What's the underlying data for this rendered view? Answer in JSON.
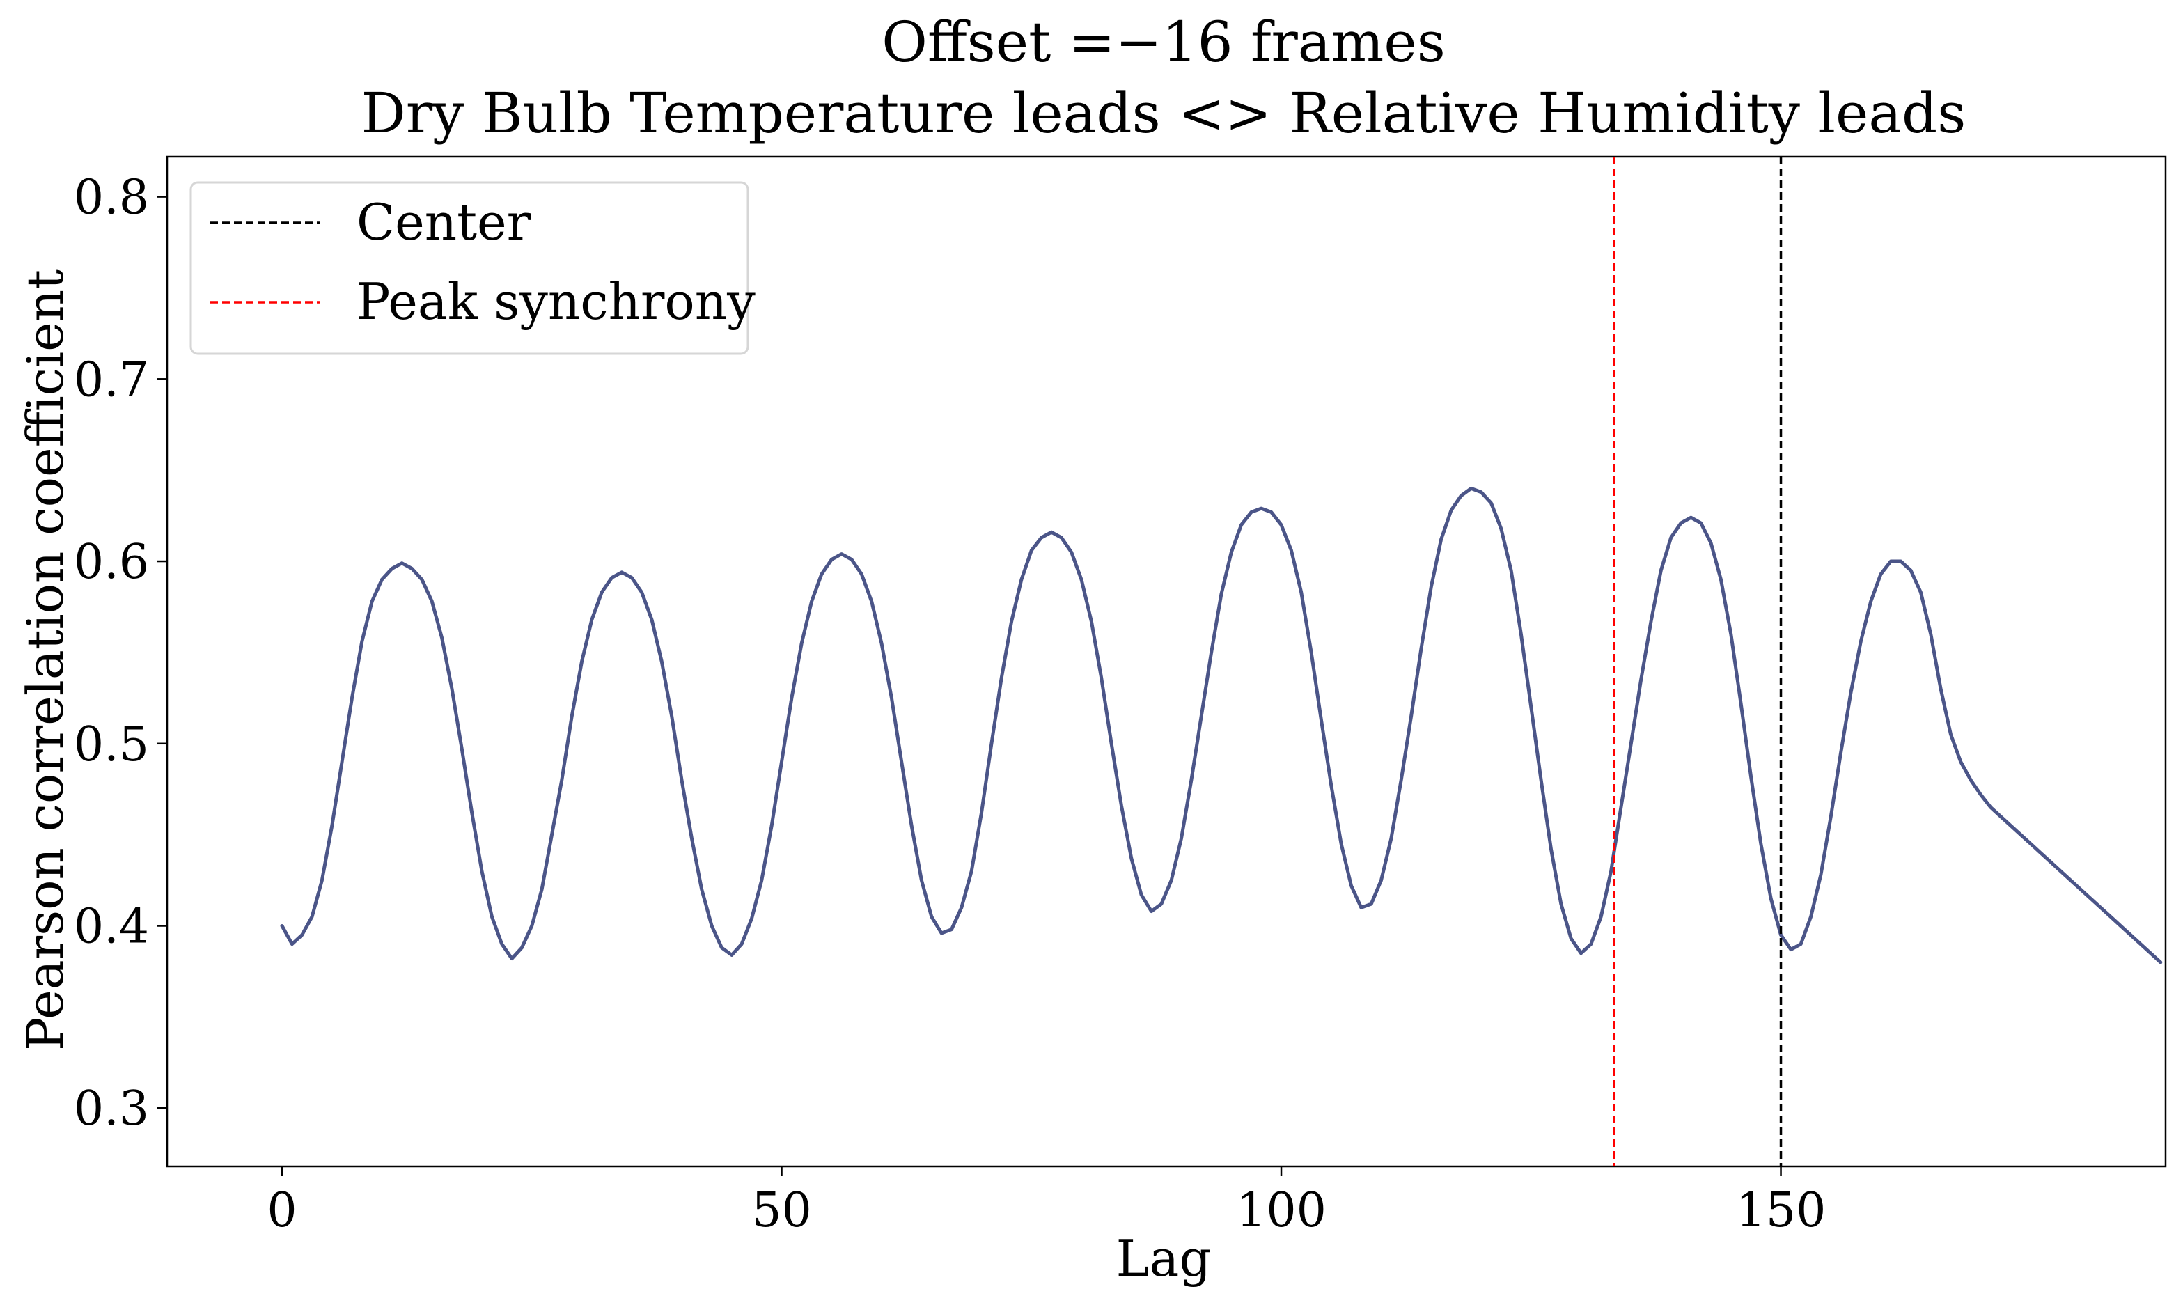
{
  "chart_data": {
    "type": "line",
    "title": "Offset =−16 frames",
    "subtitle": "Dry Bulb Temperature leads <> Relative Humidity leads",
    "xlabel": "Lag",
    "ylabel": "Pearson correlation coefficient",
    "xlim": [
      -11.5,
      188.5
    ],
    "ylim": [
      0.268,
      0.822
    ],
    "x_ticks": [
      0,
      50,
      100,
      150
    ],
    "x_tick_labels": [
      "0",
      "50",
      "100",
      "150"
    ],
    "y_ticks": [
      0.3,
      0.4,
      0.5,
      0.6,
      0.7,
      0.8
    ],
    "y_tick_labels": [
      "0.3",
      "0.4",
      "0.5",
      "0.6",
      "0.7",
      "0.8"
    ],
    "grid": false,
    "legend_position": "top-left",
    "series": [
      {
        "name": "",
        "color": "#4b5588",
        "x": [
          0,
          1,
          2,
          3,
          4,
          5,
          6,
          7,
          8,
          9,
          10,
          11,
          12,
          13,
          14,
          15,
          16,
          17,
          18,
          19,
          20,
          21,
          22,
          23,
          24,
          25,
          26,
          27,
          28,
          29,
          30,
          31,
          32,
          33,
          34,
          35,
          36,
          37,
          38,
          39,
          40,
          41,
          42,
          43,
          44,
          45,
          46,
          47,
          48,
          49,
          50,
          51,
          52,
          53,
          54,
          55,
          56,
          57,
          58,
          59,
          60,
          61,
          62,
          63,
          64,
          65,
          66,
          67,
          68,
          69,
          70,
          71,
          72,
          73,
          74,
          75,
          76,
          77,
          78,
          79,
          80,
          81,
          82,
          83,
          84,
          85,
          86,
          87,
          88,
          89,
          90,
          91,
          92,
          93,
          94,
          95,
          96,
          97,
          98,
          99,
          100,
          101,
          102,
          103,
          104,
          105,
          106,
          107,
          108,
          109,
          110,
          111,
          112,
          113,
          114,
          115,
          116,
          117,
          118,
          119,
          120,
          121,
          122,
          123,
          124,
          125,
          126,
          127,
          128,
          129,
          130,
          131,
          132,
          133,
          134,
          135,
          136,
          137,
          138,
          139,
          140,
          141,
          142,
          143,
          144,
          145,
          146,
          147,
          148,
          149,
          150,
          151,
          152,
          153,
          154,
          155,
          156,
          157,
          158,
          159,
          160,
          161,
          162,
          163,
          164,
          165,
          166,
          167,
          168,
          169,
          170,
          171,
          172,
          173,
          174,
          175,
          176,
          177,
          178,
          179,
          180,
          181,
          182,
          183,
          184,
          185,
          186,
          187,
          188
        ],
        "values": [
          0.4,
          0.39,
          0.395,
          0.405,
          0.425,
          0.455,
          0.49,
          0.525,
          0.556,
          0.578,
          0.59,
          0.596,
          0.599,
          0.596,
          0.59,
          0.578,
          0.558,
          0.53,
          0.497,
          0.462,
          0.43,
          0.405,
          0.39,
          0.382,
          0.388,
          0.4,
          0.42,
          0.45,
          0.48,
          0.515,
          0.545,
          0.568,
          0.583,
          0.591,
          0.594,
          0.591,
          0.583,
          0.568,
          0.545,
          0.515,
          0.48,
          0.448,
          0.42,
          0.4,
          0.388,
          0.384,
          0.39,
          0.404,
          0.425,
          0.455,
          0.49,
          0.525,
          0.555,
          0.578,
          0.593,
          0.601,
          0.604,
          0.601,
          0.593,
          0.578,
          0.555,
          0.525,
          0.49,
          0.455,
          0.425,
          0.405,
          0.396,
          0.398,
          0.41,
          0.43,
          0.462,
          0.5,
          0.536,
          0.567,
          0.59,
          0.606,
          0.613,
          0.616,
          0.613,
          0.605,
          0.59,
          0.567,
          0.536,
          0.5,
          0.466,
          0.437,
          0.417,
          0.408,
          0.412,
          0.425,
          0.448,
          0.48,
          0.515,
          0.55,
          0.582,
          0.605,
          0.62,
          0.627,
          0.629,
          0.627,
          0.62,
          0.606,
          0.583,
          0.55,
          0.513,
          0.477,
          0.445,
          0.422,
          0.41,
          0.412,
          0.425,
          0.448,
          0.48,
          0.515,
          0.552,
          0.586,
          0.612,
          0.628,
          0.636,
          0.64,
          0.638,
          0.632,
          0.618,
          0.595,
          0.56,
          0.52,
          0.48,
          0.442,
          0.412,
          0.393,
          0.385,
          0.39,
          0.405,
          0.43,
          0.465,
          0.5,
          0.535,
          0.567,
          0.595,
          0.613,
          0.621,
          0.624,
          0.621,
          0.61,
          0.59,
          0.56,
          0.522,
          0.482,
          0.445,
          0.415,
          0.395,
          0.387,
          0.39,
          0.405,
          0.428,
          0.46,
          0.495,
          0.528,
          0.556,
          0.578,
          0.593,
          0.6,
          0.6,
          0.595,
          0.583,
          0.56,
          0.53,
          0.505,
          0.49,
          0.48,
          0.472,
          0.465,
          0.46,
          0.455,
          0.45,
          0.445,
          0.44,
          0.435,
          0.43,
          0.425,
          0.42,
          0.415,
          0.41,
          0.405,
          0.4,
          0.395,
          0.39,
          0.385,
          0.38
        ]
      }
    ],
    "vlines": [
      {
        "name": "Center",
        "x": 150,
        "color": "#000000"
      },
      {
        "name": "Peak synchrony",
        "x": 133.3,
        "color": "#ff0000"
      }
    ]
  }
}
